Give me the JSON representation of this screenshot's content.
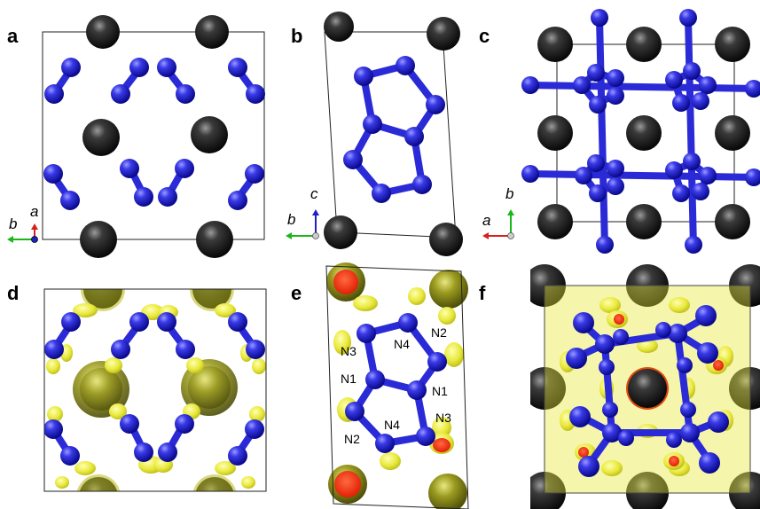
{
  "panels": [
    {
      "id": "a",
      "label": "a"
    },
    {
      "id": "b",
      "label": "b"
    },
    {
      "id": "c",
      "label": "c"
    },
    {
      "id": "d",
      "label": "d"
    },
    {
      "id": "e",
      "label": "e"
    },
    {
      "id": "f",
      "label": "f"
    }
  ],
  "axes": {
    "a": {
      "horizontal": "b",
      "vertical": "a"
    },
    "b": {
      "horizontal": "b",
      "vertical": "c"
    },
    "c": {
      "horizontal": "a",
      "vertical": "b"
    }
  },
  "atom_labels": {
    "n3_top": "N3",
    "n4_top": "N4",
    "n2_top": "N2",
    "n1_left": "N1",
    "n1_right": "N1",
    "n2_bottom": "N2",
    "n4_bottom": "N4",
    "n3_bottom": "N3"
  },
  "colors": {
    "nitrogen": "#2a2ad6",
    "metal": "#1a1a1a",
    "charge_density": "#e8e83a",
    "high_density": "#ff3300",
    "axis_a_red": "#d42020",
    "axis_b_green": "#18b818",
    "axis_c_blue": "#2020c8"
  },
  "icons": {
    "nitrogen_atom": "blue-sphere-icon",
    "metal_atom": "black-sphere-icon",
    "isosurface": "yellow-blob-icon"
  }
}
